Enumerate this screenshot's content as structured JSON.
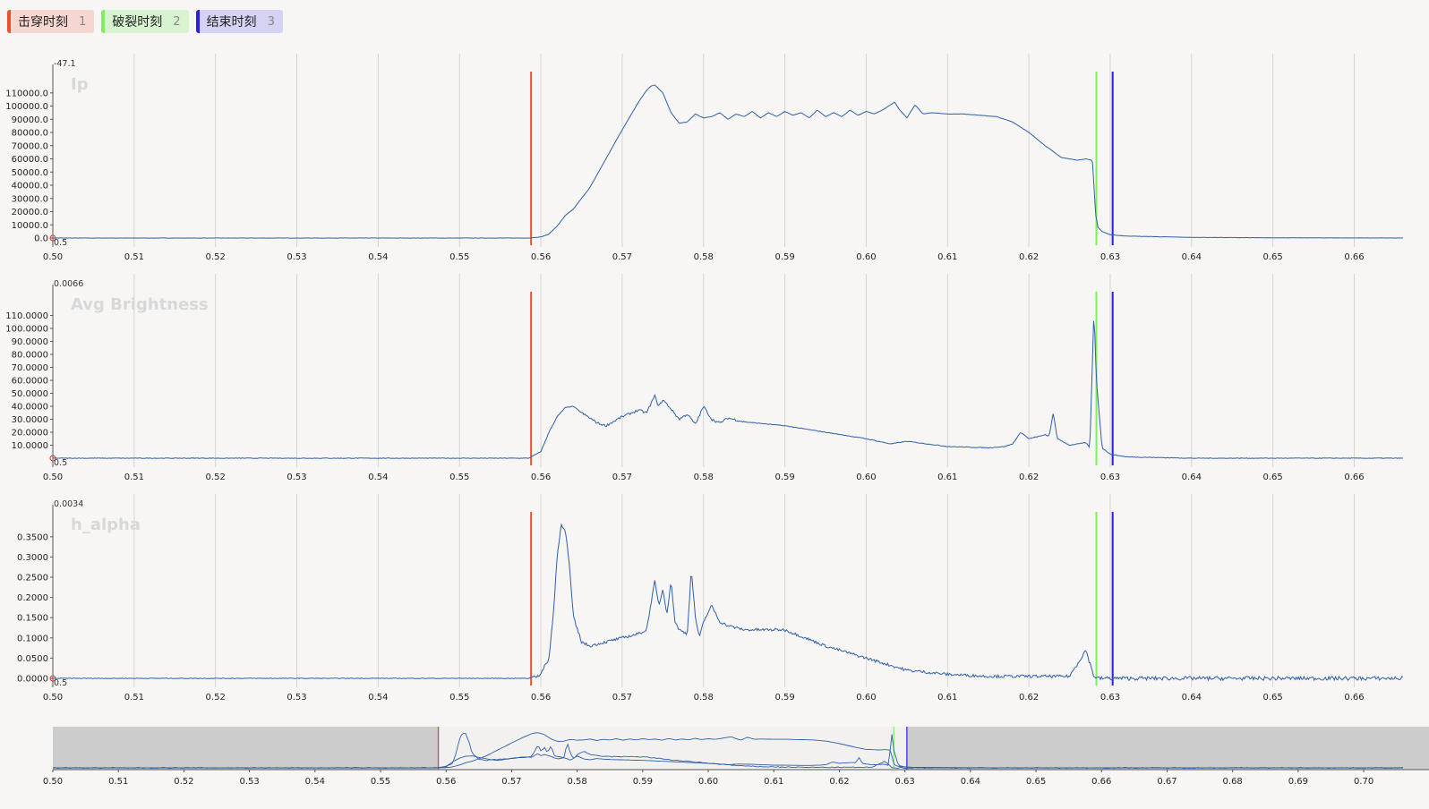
{
  "markers": [
    {
      "label": "击穿时刻",
      "num": "1",
      "color": "#e8503a",
      "bg": "#f5d6d0",
      "x": 0.5588
    },
    {
      "label": "破裂时刻",
      "num": "2",
      "color": "#7ef060",
      "bg": "#d8f3d0",
      "x": 0.6283
    },
    {
      "label": "结束时刻",
      "num": "3",
      "color": "#2a1ee0",
      "bg": "#d6d2f3",
      "x": 0.6303
    }
  ],
  "colors": {
    "line": "#2f5fa8",
    "grid": "#d4d4d4",
    "overview_bg": "#cdcccc"
  },
  "chart_data": [
    {
      "type": "line",
      "title": "Ip",
      "top_label": "-47.1",
      "origin_label": "0.5",
      "x_range": [
        0.5,
        0.666
      ],
      "x_ticks": [
        "0.50",
        "0.51",
        "0.52",
        "0.53",
        "0.54",
        "0.55",
        "0.56",
        "0.57",
        "0.58",
        "0.59",
        "0.60",
        "0.61",
        "0.62",
        "0.63",
        "0.64",
        "0.65",
        "0.66"
      ],
      "y_ticks": [
        "0.0",
        "10000.0",
        "20000.0",
        "30000.0",
        "40000.0",
        "50000.0",
        "60000.0",
        "70000.0",
        "80000.0",
        "90000.0",
        "100000.0",
        "110000.0"
      ],
      "ylim": [
        0,
        118000
      ],
      "x": [
        0.5,
        0.52,
        0.54,
        0.555,
        0.5585,
        0.56,
        0.561,
        0.562,
        0.563,
        0.564,
        0.566,
        0.568,
        0.57,
        0.572,
        0.573,
        0.5735,
        0.574,
        0.575,
        0.576,
        0.577,
        0.578,
        0.579,
        0.58,
        0.581,
        0.582,
        0.583,
        0.584,
        0.585,
        0.586,
        0.587,
        0.588,
        0.589,
        0.59,
        0.591,
        0.592,
        0.593,
        0.594,
        0.595,
        0.596,
        0.597,
        0.598,
        0.599,
        0.6,
        0.601,
        0.602,
        0.603,
        0.6035,
        0.604,
        0.605,
        0.606,
        0.607,
        0.608,
        0.61,
        0.612,
        0.614,
        0.616,
        0.618,
        0.62,
        0.622,
        0.624,
        0.625,
        0.626,
        0.627,
        0.6278,
        0.628,
        0.6282,
        0.6285,
        0.629,
        0.63,
        0.632,
        0.64,
        0.65,
        0.666
      ],
      "y": [
        0,
        0,
        0,
        0,
        0,
        800,
        3000,
        9000,
        17000,
        22000,
        38000,
        60000,
        82000,
        103000,
        112000,
        115000,
        116000,
        110000,
        95000,
        87000,
        88000,
        94000,
        91000,
        92000,
        95000,
        90000,
        94000,
        92000,
        96000,
        91000,
        95000,
        92000,
        96000,
        93000,
        95000,
        91000,
        97000,
        92000,
        95000,
        92000,
        97000,
        93000,
        96000,
        94000,
        97000,
        101000,
        103000,
        98000,
        91000,
        101000,
        94000,
        95000,
        94000,
        94000,
        93000,
        92000,
        88000,
        80000,
        70000,
        61000,
        60000,
        59000,
        60000,
        59000,
        40000,
        18000,
        8000,
        5000,
        2500,
        1500,
        500,
        200,
        0
      ]
    },
    {
      "type": "line",
      "title": "Avg Brightness",
      "top_label": "0.0066",
      "origin_label": "0.5",
      "x_range": [
        0.5,
        0.666
      ],
      "x_ticks": [
        "0.50",
        "0.51",
        "0.52",
        "0.53",
        "0.54",
        "0.55",
        "0.56",
        "0.57",
        "0.58",
        "0.59",
        "0.60",
        "0.61",
        "0.62",
        "0.63",
        "0.64",
        "0.65",
        "0.66"
      ],
      "y_ticks": [
        "10.0000",
        "20.0000",
        "30.0000",
        "40.0000",
        "50.0000",
        "60.0000",
        "70.0000",
        "80.0000",
        "90.0000",
        "100.0000",
        "110.0000"
      ],
      "ylim": [
        0,
        120
      ],
      "x": [
        0.5,
        0.55,
        0.5585,
        0.56,
        0.561,
        0.562,
        0.563,
        0.564,
        0.565,
        0.567,
        0.568,
        0.57,
        0.572,
        0.573,
        0.574,
        0.5745,
        0.575,
        0.576,
        0.577,
        0.578,
        0.579,
        0.58,
        0.581,
        0.582,
        0.583,
        0.585,
        0.59,
        0.595,
        0.6,
        0.603,
        0.605,
        0.61,
        0.615,
        0.617,
        0.618,
        0.619,
        0.62,
        0.622,
        0.6225,
        0.623,
        0.6235,
        0.625,
        0.627,
        0.6275,
        0.628,
        0.6283,
        0.629,
        0.63,
        0.632,
        0.64,
        0.666
      ],
      "y": [
        0,
        0,
        0,
        5,
        20,
        32,
        39,
        40,
        35,
        27,
        25,
        32,
        37,
        35,
        48,
        40,
        45,
        38,
        30,
        34,
        26,
        40,
        30,
        27,
        31,
        28,
        25,
        20,
        15,
        11,
        13,
        9,
        8,
        9,
        11,
        20,
        15,
        18,
        17,
        35,
        15,
        10,
        12,
        8,
        115,
        60,
        8,
        3,
        1,
        0,
        0
      ]
    },
    {
      "type": "line",
      "title": "h_alpha",
      "top_label": "0.0034",
      "origin_label": "0.5",
      "x_range": [
        0.5,
        0.666
      ],
      "x_ticks": [
        "0.50",
        "0.51",
        "0.52",
        "0.53",
        "0.54",
        "0.55",
        "0.56",
        "0.57",
        "0.58",
        "0.59",
        "0.60",
        "0.61",
        "0.62",
        "0.63",
        "0.64",
        "0.65",
        "0.66"
      ],
      "y_ticks": [
        "0.0000",
        "0.0500",
        "0.1000",
        "0.1500",
        "0.2000",
        "0.2500",
        "0.3000",
        "0.3500"
      ],
      "ylim": [
        0,
        0.385
      ],
      "x": [
        0.5,
        0.55,
        0.5585,
        0.56,
        0.561,
        0.5615,
        0.562,
        0.5625,
        0.563,
        0.5635,
        0.564,
        0.565,
        0.566,
        0.568,
        0.57,
        0.572,
        0.573,
        0.574,
        0.5745,
        0.575,
        0.5755,
        0.576,
        0.5765,
        0.577,
        0.578,
        0.5785,
        0.579,
        0.5795,
        0.58,
        0.581,
        0.582,
        0.583,
        0.585,
        0.59,
        0.595,
        0.6,
        0.605,
        0.61,
        0.615,
        0.62,
        0.625,
        0.627,
        0.628,
        0.6285,
        0.629,
        0.632,
        0.666
      ],
      "y": [
        0,
        0,
        0,
        0.01,
        0.05,
        0.15,
        0.3,
        0.38,
        0.37,
        0.28,
        0.15,
        0.09,
        0.08,
        0.09,
        0.1,
        0.11,
        0.12,
        0.24,
        0.18,
        0.22,
        0.16,
        0.24,
        0.14,
        0.12,
        0.11,
        0.27,
        0.15,
        0.1,
        0.14,
        0.18,
        0.14,
        0.13,
        0.12,
        0.12,
        0.08,
        0.05,
        0.02,
        0.01,
        0.005,
        0.005,
        0.005,
        0.07,
        0.005,
        0,
        0,
        0,
        0
      ]
    }
  ],
  "overview": {
    "x_range": [
      0.5,
      0.706
    ],
    "x_ticks": [
      "0.50",
      "0.51",
      "0.52",
      "0.53",
      "0.54",
      "0.55",
      "0.56",
      "0.57",
      "0.58",
      "0.59",
      "0.60",
      "0.61",
      "0.62",
      "0.63",
      "0.64",
      "0.65",
      "0.66",
      "0.67",
      "0.68",
      "0.69",
      "0.70"
    ],
    "window": [
      0.559,
      0.6303
    ]
  }
}
